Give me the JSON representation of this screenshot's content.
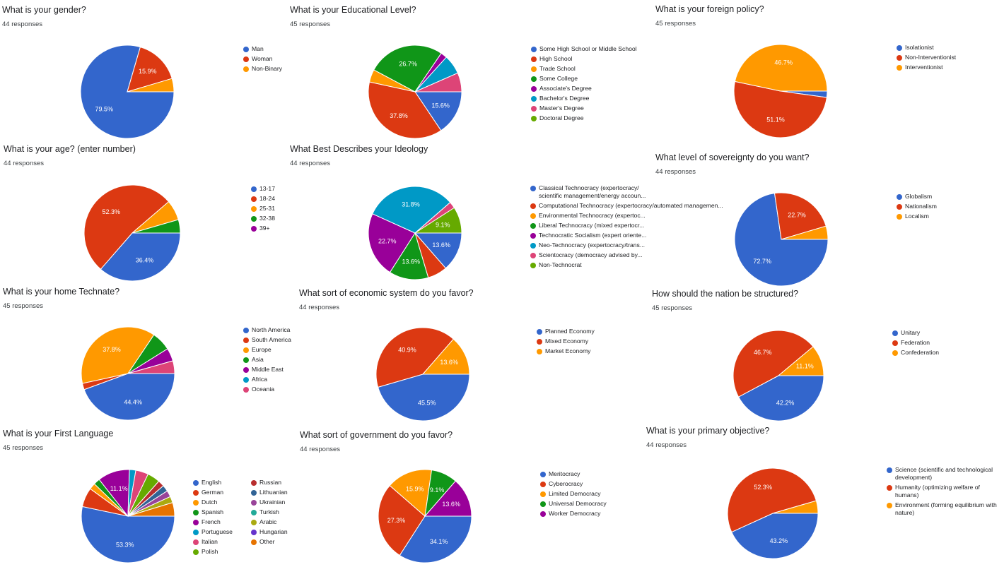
{
  "chart_data": [
    {
      "type": "pie",
      "title": "What is your gender?",
      "subtitle": "44 responses",
      "categories": [
        "Man",
        "Woman",
        "Non-Binary"
      ],
      "values": [
        79.5,
        15.9,
        4.6
      ],
      "data_labels": [
        "79.5%",
        "15.9%",
        ""
      ],
      "colors": [
        "#3366cc",
        "#dc3912",
        "#ff9900"
      ],
      "legend": "right"
    },
    {
      "type": "pie",
      "title": "What is your Educational Level?",
      "subtitle": "45 responses",
      "categories": [
        "Some High School or Middle School",
        "High School",
        "Trade School",
        "Some College",
        "Associate's Degree",
        "Bachelor's Degree",
        "Master's Degree",
        "Doctoral Degree"
      ],
      "values": [
        15.6,
        37.8,
        4.4,
        26.7,
        2.2,
        6.7,
        6.6,
        0
      ],
      "data_labels": [
        "15.6%",
        "37.8%",
        "",
        "26.7%",
        "",
        "",
        "",
        ""
      ],
      "colors": [
        "#3366cc",
        "#dc3912",
        "#ff9900",
        "#109618",
        "#990099",
        "#0099c6",
        "#dd4477",
        "#66aa00"
      ],
      "legend": "right"
    },
    {
      "type": "pie",
      "title": "What is your foreign policy?",
      "subtitle": "45 responses",
      "categories": [
        "Isolationist",
        "Non-Interventionist",
        "Interventionist"
      ],
      "values": [
        2.2,
        51.1,
        46.7
      ],
      "data_labels": [
        "",
        "51.1%",
        "46.7%"
      ],
      "colors": [
        "#3366cc",
        "#dc3912",
        "#ff9900"
      ],
      "legend": "right"
    },
    {
      "type": "pie",
      "title": "What is your age? (enter number)",
      "subtitle": "44 responses",
      "categories": [
        "13-17",
        "18-24",
        "25-31",
        "32-38",
        "39+"
      ],
      "values": [
        36.4,
        52.3,
        6.8,
        4.5,
        0
      ],
      "data_labels": [
        "36.4%",
        "52.3%",
        "",
        "",
        ""
      ],
      "colors": [
        "#3366cc",
        "#dc3912",
        "#ff9900",
        "#109618",
        "#990099"
      ],
      "legend": "right"
    },
    {
      "type": "pie",
      "title": "What Best Describes your Ideology",
      "subtitle": "44 responses",
      "categories": [
        "Classical Technocracy (expertocracy/ scientific management/energy accoun...",
        "Computational Technocracy (expertocracy/automated managemen...",
        "Environmental Technocracy (expertoc...",
        "Liberal Technocracy (mixed expertocr...",
        "Technocratic Socialism (expert oriente...",
        "Neo-Technocracy (expertocracy/trans...",
        "Scientocracy (democracy advised by...",
        "Non-Technocrat"
      ],
      "values": [
        13.6,
        6.8,
        0,
        13.6,
        22.7,
        31.8,
        2.3,
        9.1
      ],
      "data_labels": [
        "13.6%",
        "",
        "",
        "13.6%",
        "22.7%",
        "31.8%",
        "",
        "9.1%"
      ],
      "colors": [
        "#3366cc",
        "#dc3912",
        "#ff9900",
        "#109618",
        "#990099",
        "#0099c6",
        "#dd4477",
        "#66aa00"
      ],
      "legend": "right"
    },
    {
      "type": "pie",
      "title": "What level of sovereignty do you want?",
      "subtitle": "44 responses",
      "categories": [
        "Globalism",
        "Nationalism",
        "Localism"
      ],
      "values": [
        72.7,
        22.7,
        4.6
      ],
      "data_labels": [
        "72.7%",
        "22.7%",
        ""
      ],
      "colors": [
        "#3366cc",
        "#dc3912",
        "#ff9900"
      ],
      "legend": "right"
    },
    {
      "type": "pie",
      "title": "What is your home Technate?",
      "subtitle": "45 responses",
      "categories": [
        "North America",
        "South America",
        "Europe",
        "Asia",
        "Middle East",
        "Africa",
        "Oceania"
      ],
      "values": [
        44.4,
        2.2,
        37.8,
        6.7,
        4.5,
        0,
        4.4
      ],
      "data_labels": [
        "44.4%",
        "",
        "37.8%",
        "",
        "",
        "",
        ""
      ],
      "colors": [
        "#3366cc",
        "#dc3912",
        "#ff9900",
        "#109618",
        "#990099",
        "#0099c6",
        "#dd4477"
      ],
      "legend": "right"
    },
    {
      "type": "pie",
      "title": "What sort of economic system do you favor?",
      "subtitle": "44 responses",
      "categories": [
        "Planned Economy",
        "Mixed Economy",
        "Market Economy"
      ],
      "values": [
        45.5,
        40.9,
        13.6
      ],
      "data_labels": [
        "45.5%",
        "40.9%",
        "13.6%"
      ],
      "colors": [
        "#3366cc",
        "#dc3912",
        "#ff9900"
      ],
      "legend": "right"
    },
    {
      "type": "pie",
      "title": "How should the nation be structured?",
      "subtitle": "45 responses",
      "categories": [
        "Unitary",
        "Federation",
        "Confederation"
      ],
      "values": [
        42.2,
        46.7,
        11.1
      ],
      "data_labels": [
        "42.2%",
        "46.7%",
        "11.1%"
      ],
      "colors": [
        "#3366cc",
        "#dc3912",
        "#ff9900"
      ],
      "legend": "right"
    },
    {
      "type": "pie",
      "title": "What is your First Language",
      "subtitle": "45 responses",
      "categories": [
        "English",
        "German",
        "Dutch",
        "Spanish",
        "French",
        "Portuguese",
        "Italian",
        "Polish",
        "Russian",
        "Lithuanian",
        "Ukrainian",
        "Turkish",
        "Arabic",
        "Hungarian",
        "Other"
      ],
      "values": [
        53.3,
        6.7,
        2.2,
        2.2,
        11.1,
        2.2,
        4.4,
        4.4,
        2.2,
        2.2,
        2.2,
        0,
        2.2,
        0,
        4.7
      ],
      "data_labels": [
        "53.3%",
        "",
        "",
        "",
        "11.1%",
        "",
        "",
        "",
        "",
        "",
        "",
        "",
        "",
        "",
        ""
      ],
      "colors": [
        "#3366cc",
        "#dc3912",
        "#ff9900",
        "#109618",
        "#990099",
        "#0099c6",
        "#dd4477",
        "#66aa00",
        "#b82e2e",
        "#316395",
        "#994499",
        "#22aa99",
        "#aaaa11",
        "#6633cc",
        "#e67300"
      ],
      "legend": "right"
    },
    {
      "type": "pie",
      "title": "What sort of government do you favor?",
      "subtitle": "44 responses",
      "categories": [
        "Meritocracy",
        "Cyberocracy",
        "Limited Democracy",
        "Universal Democracy",
        "Worker Democracy"
      ],
      "values": [
        34.1,
        27.3,
        15.9,
        9.1,
        13.6
      ],
      "data_labels": [
        "34.1%",
        "27.3%",
        "15.9%",
        "9.1%",
        "13.6%"
      ],
      "colors": [
        "#3366cc",
        "#dc3912",
        "#ff9900",
        "#109618",
        "#990099"
      ],
      "legend": "right"
    },
    {
      "type": "pie",
      "title": "What is your primary objective?",
      "subtitle": "44 responses",
      "categories": [
        "Science (scientific and technological development)",
        "Humanity (optimizing welfare of humans)",
        "Environment (forming equilibrium with nature)"
      ],
      "values": [
        43.2,
        52.3,
        4.5
      ],
      "data_labels": [
        "43.2%",
        "52.3%",
        ""
      ],
      "colors": [
        "#3366cc",
        "#dc3912",
        "#ff9900"
      ],
      "legend": "right"
    }
  ]
}
